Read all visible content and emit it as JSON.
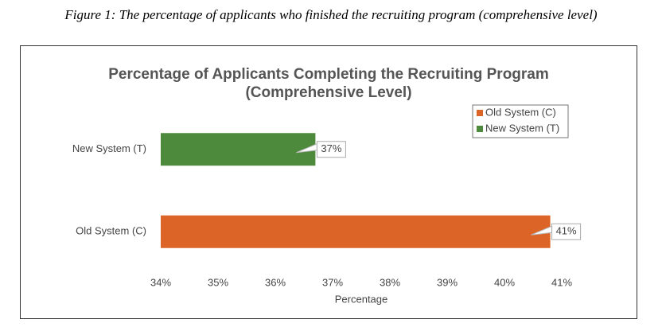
{
  "caption": "Figure 1: The percentage of applicants who finished the recruiting program (comprehensive level)",
  "chart_data": {
    "type": "barh",
    "title": "Percentage of Applicants Completing the Recruiting Program (Comprehensive Level)",
    "x_label": "Percentage",
    "categories": [
      "New System (T)",
      "Old System (C)"
    ],
    "series": [
      {
        "name": "Old System (C)",
        "color": "#dc6426",
        "values": [
          null,
          40.8
        ],
        "value_labels": [
          null,
          "41%"
        ]
      },
      {
        "name": "New System (T)",
        "color": "#4e8a3c",
        "values": [
          36.7,
          null
        ],
        "value_labels": [
          "37%",
          null
        ]
      }
    ],
    "xlim": [
      34,
      41
    ],
    "xticks": [
      {
        "value": 34,
        "label": "34%"
      },
      {
        "value": 35,
        "label": "35%"
      },
      {
        "value": 36,
        "label": "36%"
      },
      {
        "value": 37,
        "label": "37%"
      },
      {
        "value": 38,
        "label": "38%"
      },
      {
        "value": 39,
        "label": "39%"
      },
      {
        "value": 40,
        "label": "40%"
      },
      {
        "value": 41,
        "label": "41%"
      }
    ],
    "legend": "top-right",
    "grid": false
  }
}
